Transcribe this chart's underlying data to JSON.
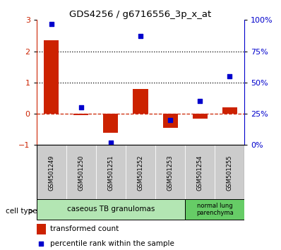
{
  "title": "GDS4256 / g6716556_3p_x_at",
  "samples": [
    "GSM501249",
    "GSM501250",
    "GSM501251",
    "GSM501252",
    "GSM501253",
    "GSM501254",
    "GSM501255"
  ],
  "transformed_count": [
    2.35,
    -0.05,
    -0.6,
    0.8,
    -0.45,
    -0.15,
    0.2
  ],
  "percentile_rank": [
    97,
    30,
    2,
    87,
    20,
    35,
    55
  ],
  "bar_color": "#cc2200",
  "dot_color": "#0000cc",
  "ylim_left": [
    -1.0,
    3.0
  ],
  "ylim_right": [
    0,
    100
  ],
  "yticks_left": [
    -1,
    0,
    1,
    2,
    3
  ],
  "yticks_right": [
    0,
    25,
    50,
    75,
    100
  ],
  "yticklabels_right": [
    "0%",
    "25%",
    "50%",
    "75%",
    "100%"
  ],
  "hline_y": [
    1,
    2
  ],
  "hline_color": "black",
  "zero_line_color": "#cc2200",
  "zero_line_style": "--",
  "group1_label": "caseous TB granulomas",
  "group1_count": 5,
  "group1_color": "#b3e6b3",
  "group2_label": "normal lung\nparenchyma",
  "group2_count": 2,
  "group2_color": "#66cc66",
  "legend_bar_label": "transformed count",
  "legend_dot_label": "percentile rank within the sample",
  "cell_type_label": "cell type",
  "background_color": "#ffffff",
  "sample_box_color": "#cccccc",
  "bar_width": 0.5
}
